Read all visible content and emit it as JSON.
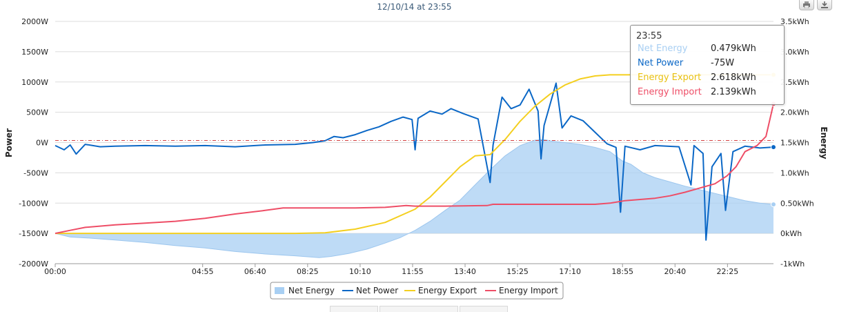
{
  "chart_data": {
    "type": "area+line",
    "title": "12/10/14 at 23:55",
    "x_ticks": [
      "00:00",
      "04:55",
      "06:40",
      "08:25",
      "10:10",
      "11:55",
      "13:40",
      "15:25",
      "17:10",
      "18:55",
      "20:40",
      "22:25"
    ],
    "ylabel_left": "Power",
    "ylabel_right": "Energy",
    "y_left_ticks": [
      "2000W",
      "1500W",
      "1000W",
      "500W",
      "0W",
      "-500W",
      "-1000W",
      "-1500W",
      "-2000W"
    ],
    "y_right_ticks": [
      "3.5kWh",
      "3.0kWh",
      "2.5kWh",
      "2.0kWh",
      "1.5kWh",
      "1.0kWh",
      "0.50kWh",
      "0kWh",
      "-1kWh"
    ],
    "ylim_left": [
      -2000,
      2000
    ],
    "ylim_right": [
      -0.5,
      3.5
    ],
    "x_unit": "hours",
    "series": [
      {
        "name": "Net Energy",
        "kind": "area",
        "axis": "right",
        "color": "#a8cff3",
        "points": [
          [
            0,
            0
          ],
          [
            0.5,
            -0.06
          ],
          [
            1.2,
            -0.08
          ],
          [
            2,
            -0.11
          ],
          [
            3,
            -0.15
          ],
          [
            4,
            -0.2
          ],
          [
            5,
            -0.24
          ],
          [
            6,
            -0.3
          ],
          [
            7,
            -0.34
          ],
          [
            8,
            -0.37
          ],
          [
            8.8,
            -0.4
          ],
          [
            9.2,
            -0.38
          ],
          [
            9.8,
            -0.33
          ],
          [
            10.4,
            -0.26
          ],
          [
            11,
            -0.16
          ],
          [
            11.5,
            -0.07
          ],
          [
            12,
            0.05
          ],
          [
            12.5,
            0.2
          ],
          [
            13,
            0.38
          ],
          [
            13.5,
            0.55
          ],
          [
            14,
            0.8
          ],
          [
            14.5,
            1.05
          ],
          [
            15,
            1.28
          ],
          [
            15.5,
            1.45
          ],
          [
            16,
            1.54
          ],
          [
            16.3,
            1.55
          ],
          [
            16.6,
            1.52
          ],
          [
            17,
            1.5
          ],
          [
            17.5,
            1.47
          ],
          [
            18,
            1.42
          ],
          [
            18.5,
            1.35
          ],
          [
            18.9,
            1.2
          ],
          [
            19.2,
            1.14
          ],
          [
            19.6,
            1.0
          ],
          [
            20,
            0.92
          ],
          [
            20.5,
            0.85
          ],
          [
            21,
            0.78
          ],
          [
            21.5,
            0.72
          ],
          [
            22,
            0.66
          ],
          [
            22.5,
            0.6
          ],
          [
            23,
            0.54
          ],
          [
            23.5,
            0.5
          ],
          [
            23.95,
            0.479
          ]
        ]
      },
      {
        "name": "Net Power",
        "kind": "line",
        "axis": "left",
        "color": "#0a67c6",
        "points": [
          [
            0,
            -50
          ],
          [
            0.3,
            -120
          ],
          [
            0.5,
            -40
          ],
          [
            0.7,
            -190
          ],
          [
            1,
            -30
          ],
          [
            1.5,
            -70
          ],
          [
            2,
            -60
          ],
          [
            3,
            -50
          ],
          [
            4,
            -60
          ],
          [
            5,
            -50
          ],
          [
            6,
            -70
          ],
          [
            7,
            -40
          ],
          [
            8,
            -30
          ],
          [
            8.6,
            0
          ],
          [
            9,
            30
          ],
          [
            9.3,
            100
          ],
          [
            9.6,
            80
          ],
          [
            10,
            130
          ],
          [
            10.4,
            200
          ],
          [
            10.8,
            260
          ],
          [
            11.2,
            350
          ],
          [
            11.6,
            420
          ],
          [
            11.9,
            380
          ],
          [
            12,
            -120
          ],
          [
            12.1,
            400
          ],
          [
            12.5,
            520
          ],
          [
            12.9,
            470
          ],
          [
            13.2,
            560
          ],
          [
            13.6,
            480
          ],
          [
            14.1,
            390
          ],
          [
            14.5,
            -660
          ],
          [
            14.6,
            -40
          ],
          [
            14.9,
            750
          ],
          [
            15.2,
            560
          ],
          [
            15.5,
            620
          ],
          [
            15.8,
            880
          ],
          [
            16.1,
            520
          ],
          [
            16.2,
            -270
          ],
          [
            16.3,
            280
          ],
          [
            16.7,
            980
          ],
          [
            16.9,
            240
          ],
          [
            17.2,
            440
          ],
          [
            17.6,
            360
          ],
          [
            18,
            170
          ],
          [
            18.4,
            -20
          ],
          [
            18.7,
            -80
          ],
          [
            18.85,
            -1150
          ],
          [
            19,
            -60
          ],
          [
            19.5,
            -120
          ],
          [
            20,
            -50
          ],
          [
            20.8,
            -70
          ],
          [
            21.2,
            -700
          ],
          [
            21.3,
            -50
          ],
          [
            21.6,
            -180
          ],
          [
            21.7,
            -1610
          ],
          [
            21.9,
            -400
          ],
          [
            22.2,
            -180
          ],
          [
            22.35,
            -1120
          ],
          [
            22.6,
            -150
          ],
          [
            23,
            -60
          ],
          [
            23.5,
            -90
          ],
          [
            23.95,
            -75
          ]
        ]
      },
      {
        "name": "Energy Export",
        "kind": "line",
        "axis": "right",
        "color": "#f4cf1f",
        "points": [
          [
            0,
            0
          ],
          [
            8,
            0
          ],
          [
            9,
            0.01
          ],
          [
            10,
            0.07
          ],
          [
            11,
            0.18
          ],
          [
            12,
            0.4
          ],
          [
            12.5,
            0.6
          ],
          [
            13,
            0.85
          ],
          [
            13.5,
            1.1
          ],
          [
            14,
            1.28
          ],
          [
            14.5,
            1.3
          ],
          [
            15,
            1.55
          ],
          [
            15.5,
            1.85
          ],
          [
            16,
            2.1
          ],
          [
            16.5,
            2.3
          ],
          [
            17,
            2.45
          ],
          [
            17.5,
            2.55
          ],
          [
            18,
            2.6
          ],
          [
            18.5,
            2.618
          ],
          [
            23.95,
            2.618
          ]
        ]
      },
      {
        "name": "Energy Import",
        "kind": "line",
        "axis": "right",
        "color": "#ee4d66",
        "points": [
          [
            0,
            0
          ],
          [
            0.5,
            0.05
          ],
          [
            1,
            0.1
          ],
          [
            2,
            0.14
          ],
          [
            3,
            0.17
          ],
          [
            4,
            0.2
          ],
          [
            5,
            0.25
          ],
          [
            6,
            0.32
          ],
          [
            7,
            0.38
          ],
          [
            7.6,
            0.42
          ],
          [
            8,
            0.42
          ],
          [
            10,
            0.42
          ],
          [
            11,
            0.43
          ],
          [
            11.7,
            0.46
          ],
          [
            12,
            0.45
          ],
          [
            13,
            0.45
          ],
          [
            14.4,
            0.46
          ],
          [
            14.6,
            0.48
          ],
          [
            18,
            0.48
          ],
          [
            18.5,
            0.5
          ],
          [
            19,
            0.54
          ],
          [
            20,
            0.58
          ],
          [
            20.5,
            0.62
          ],
          [
            21,
            0.68
          ],
          [
            22,
            0.82
          ],
          [
            22.4,
            0.95
          ],
          [
            22.7,
            1.1
          ],
          [
            23,
            1.35
          ],
          [
            23.4,
            1.45
          ],
          [
            23.7,
            1.6
          ],
          [
            23.95,
            2.139
          ]
        ]
      }
    ],
    "zero_line": {
      "value": 0,
      "axis": "left",
      "color": "#d44040"
    },
    "legend_position": "bottom-center"
  },
  "tooltip": {
    "time": "23:55",
    "rows": [
      {
        "name": "Net Energy",
        "value": "0.479kWh",
        "color": "#a8cff3"
      },
      {
        "name": "Net Power",
        "value": "-75W",
        "color": "#0a67c6"
      },
      {
        "name": "Energy Export",
        "value": "2.618kWh",
        "color": "#f4cf1f"
      },
      {
        "name": "Energy Import",
        "value": "2.139kWh",
        "color": "#ee4d66"
      }
    ]
  },
  "toolbar": {
    "print_icon": "print-icon",
    "export_icon": "download-icon"
  }
}
